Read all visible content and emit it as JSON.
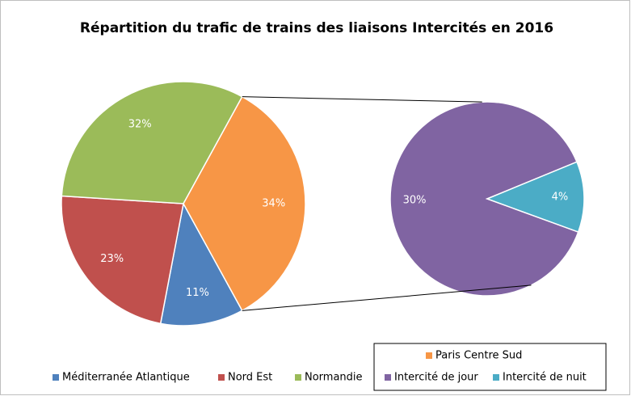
{
  "chart_data": {
    "type": "pie-of-pie",
    "title": "Répartition du trafic de trains des liaisons Intercités en 2016",
    "pie": {
      "categories": [
        "Méditerranée Atlantique",
        "Nord Est",
        "Normandie",
        "Paris Centre Sud"
      ],
      "values": [
        11,
        23,
        32,
        34
      ],
      "value_labels": [
        "11%",
        "23%",
        "32%",
        "34%"
      ],
      "colors": [
        "#4f81bd",
        "#c0504d",
        "#9bbb59",
        "#f79646"
      ]
    },
    "subpie": {
      "categories": [
        "Intercité de jour",
        "Intercité de nuit"
      ],
      "values": [
        30,
        4
      ],
      "value_labels": [
        "30%",
        "4%"
      ],
      "colors": [
        "#8064a2",
        "#4bacc6"
      ]
    }
  }
}
